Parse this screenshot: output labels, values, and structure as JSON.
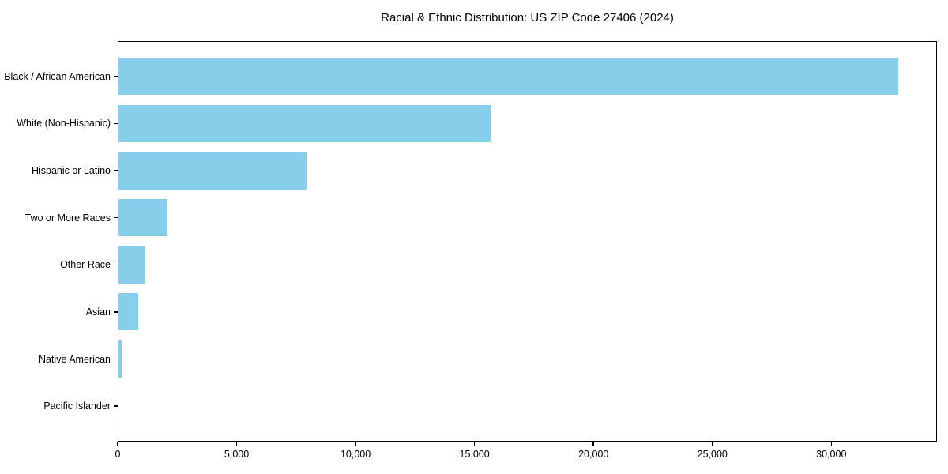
{
  "chart_data": {
    "type": "bar",
    "orientation": "horizontal",
    "title": "Racial & Ethnic Distribution: US ZIP Code 27406 (2024)",
    "categories": [
      "Black / African American",
      "White (Non-Hispanic)",
      "Hispanic or Latino",
      "Two or More Races",
      "Other Race",
      "Asian",
      "Native American",
      "Pacific Islander"
    ],
    "values": [
      32800,
      15700,
      7950,
      2050,
      1150,
      850,
      150,
      0
    ],
    "xlabel": "",
    "ylabel": "",
    "xlim": [
      0,
      34440
    ],
    "xticks": [
      0,
      5000,
      10000,
      15000,
      20000,
      25000,
      30000
    ],
    "xtick_labels": [
      "0",
      "5,000",
      "10,000",
      "15,000",
      "20,000",
      "25,000",
      "30,000"
    ],
    "bar_color": "#87CEEB",
    "axis_color": "#000000",
    "text_color": "#000000",
    "background_color": "#FFFFFF",
    "grid": false,
    "legend": "none",
    "sort_order": "descending_top_to_bottom"
  }
}
